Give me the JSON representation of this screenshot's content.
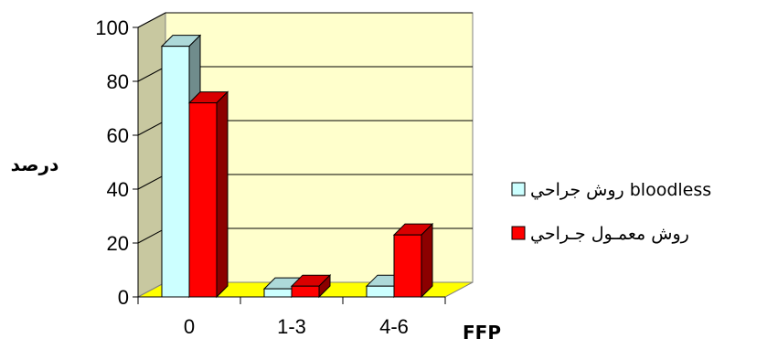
{
  "chart_data": {
    "type": "bar",
    "categories": [
      "0",
      "1-3",
      "4-6"
    ],
    "series": [
      {
        "name": "روش جراحي bloodless",
        "color": "#CCFFFF",
        "values": [
          93,
          3,
          4
        ]
      },
      {
        "name": "روش معمـول جـراحي",
        "color": "#FF0000",
        "values": [
          72,
          4,
          23
        ]
      }
    ],
    "xlabel": "FFP",
    "ylabel": "درصد",
    "ylim": [
      0,
      100
    ],
    "yticks": [
      0,
      20,
      40,
      60,
      80,
      100
    ],
    "grid": true,
    "legend": "right",
    "wall_color": "#FFFFCC",
    "floor_color": "#FFFF00"
  }
}
